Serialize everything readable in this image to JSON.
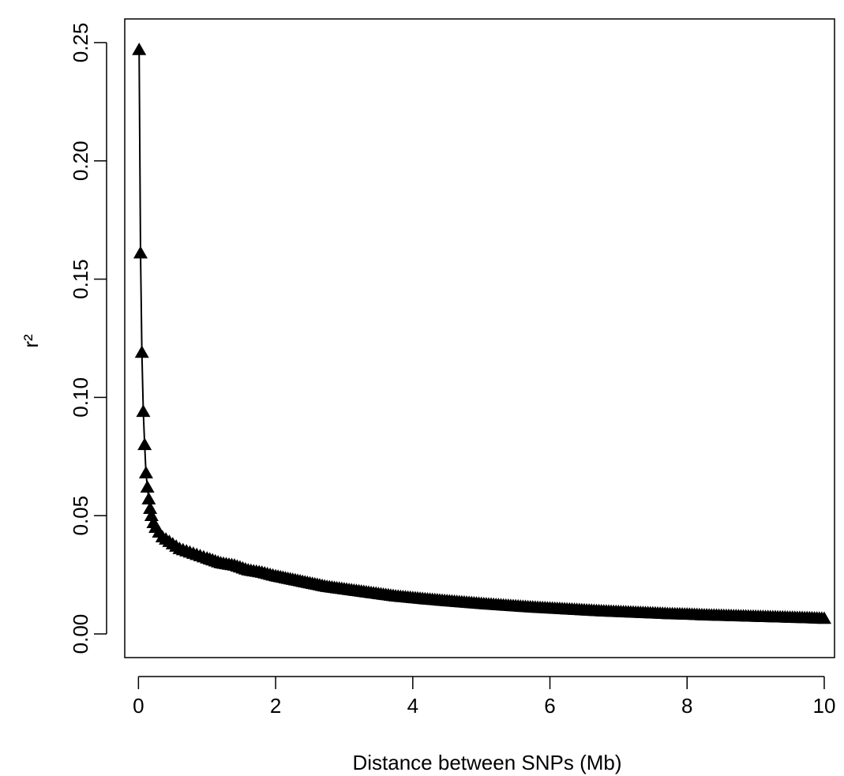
{
  "chart_data": {
    "type": "line",
    "title": "",
    "xlabel": "Distance between SNPs (Mb)",
    "ylabel": "r²",
    "xlim": [
      -0.2,
      10.15
    ],
    "ylim": [
      -0.01,
      0.26
    ],
    "x_ticks": [
      0,
      2,
      4,
      6,
      8,
      10
    ],
    "x_tick_labels": [
      "0",
      "2",
      "4",
      "6",
      "8",
      "10"
    ],
    "y_ticks": [
      0.0,
      0.05,
      0.1,
      0.15,
      0.2,
      0.25
    ],
    "y_tick_labels": [
      "0.00",
      "0.05",
      "0.10",
      "0.15",
      "0.20",
      "0.25"
    ],
    "grid": false,
    "legend": "none",
    "marker": "filled-triangle",
    "color": "#000000",
    "series": [
      {
        "x": [
          0.01,
          0.03,
          0.05,
          0.07,
          0.09,
          0.11,
          0.13,
          0.15,
          0.17,
          0.19,
          0.22,
          0.25,
          0.3,
          0.35,
          0.4,
          0.5,
          0.6,
          0.7,
          0.8,
          0.9,
          1.0,
          1.2,
          1.4,
          1.6,
          1.8,
          2.0,
          2.25,
          2.5,
          2.75,
          3.0,
          3.25,
          3.5,
          3.75,
          4.0,
          4.25,
          4.5,
          4.75,
          5.0,
          5.25,
          5.5,
          5.75,
          6.0,
          6.25,
          6.5,
          6.75,
          7.0,
          7.25,
          7.5,
          7.75,
          8.0,
          8.25,
          8.5,
          8.75,
          9.0,
          9.25,
          9.5,
          9.75,
          10.0
        ],
        "y": [
          0.247,
          0.161,
          0.119,
          0.094,
          0.08,
          0.068,
          0.062,
          0.057,
          0.053,
          0.05,
          0.047,
          0.045,
          0.043,
          0.041,
          0.04,
          0.038,
          0.036,
          0.035,
          0.034,
          0.033,
          0.032,
          0.03,
          0.029,
          0.027,
          0.026,
          0.0245,
          0.023,
          0.0215,
          0.02,
          0.019,
          0.018,
          0.017,
          0.016,
          0.0153,
          0.0146,
          0.014,
          0.0134,
          0.0128,
          0.0123,
          0.0118,
          0.0113,
          0.0109,
          0.0105,
          0.0101,
          0.0097,
          0.0094,
          0.0091,
          0.0088,
          0.0085,
          0.0083,
          0.008,
          0.0078,
          0.0076,
          0.0074,
          0.0072,
          0.007,
          0.0068,
          0.0065
        ]
      }
    ]
  }
}
